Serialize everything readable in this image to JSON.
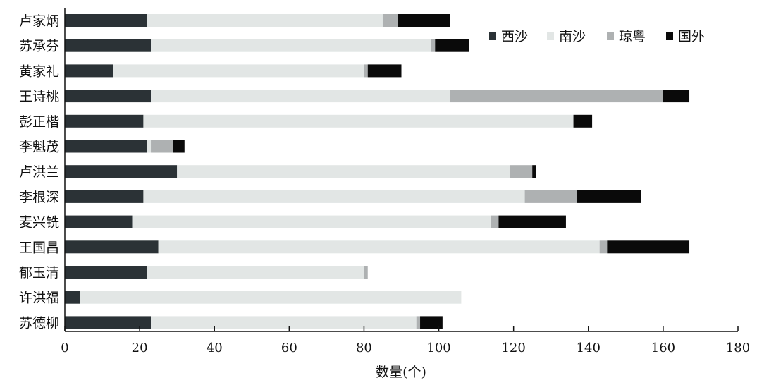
{
  "chart_data": {
    "type": "bar",
    "orientation": "horizontal",
    "stacked": true,
    "categories": [
      "卢家炳",
      "苏承芬",
      "黄家礼",
      "王诗桃",
      "彭正楷",
      "李魁茂",
      "卢洪兰",
      "李根深",
      "麦兴铣",
      "王国昌",
      "郁玉清",
      "许洪福",
      "苏德柳"
    ],
    "series": [
      {
        "name": "西沙",
        "color": "#2b3236",
        "values": [
          22,
          23,
          13,
          23,
          21,
          22,
          30,
          21,
          18,
          25,
          22,
          4,
          23
        ]
      },
      {
        "name": "南沙",
        "color": "#e2e6e5",
        "values": [
          63,
          75,
          67,
          80,
          115,
          1,
          89,
          102,
          96,
          118,
          58,
          102,
          71
        ]
      },
      {
        "name": "琼粤",
        "color": "#aeb1b2",
        "values": [
          4,
          1,
          1,
          57,
          0,
          6,
          6,
          14,
          2,
          2,
          1,
          0,
          1
        ]
      },
      {
        "name": "国外",
        "color": "#0a0a0a",
        "values": [
          14,
          9,
          9,
          7,
          5,
          3,
          1,
          17,
          18,
          22,
          0,
          0,
          6
        ]
      }
    ],
    "xlabel": "数量(个)",
    "xlim": [
      0,
      180
    ],
    "xticks": [
      0,
      20,
      40,
      60,
      80,
      100,
      120,
      140,
      160,
      180
    ],
    "grid": false,
    "legend_position": "top-right"
  }
}
